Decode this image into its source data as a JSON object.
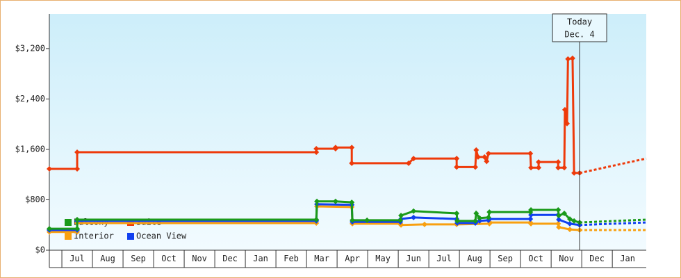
{
  "chart_data": {
    "type": "line",
    "xlim": [
      0.59,
      20.11
    ],
    "xticks": [
      {
        "value": 1.5,
        "label": "Jul"
      },
      {
        "value": 2.5,
        "label": "Aug"
      },
      {
        "value": 3.5,
        "label": "Sep"
      },
      {
        "value": 4.5,
        "label": "Oct"
      },
      {
        "value": 5.5,
        "label": "Nov"
      },
      {
        "value": 6.5,
        "label": "Dec"
      },
      {
        "value": 7.5,
        "label": "Jan"
      },
      {
        "value": 8.5,
        "label": "Feb"
      },
      {
        "value": 9.5,
        "label": "Mar"
      },
      {
        "value": 10.5,
        "label": "Apr"
      },
      {
        "value": 11.5,
        "label": "May"
      },
      {
        "value": 12.5,
        "label": "Jun"
      },
      {
        "value": 13.5,
        "label": "Jul"
      },
      {
        "value": 14.5,
        "label": "Aug"
      },
      {
        "value": 15.5,
        "label": "Sep"
      },
      {
        "value": 16.5,
        "label": "Oct"
      },
      {
        "value": 17.5,
        "label": "Nov"
      },
      {
        "value": 18.5,
        "label": "Dec"
      },
      {
        "value": 19.5,
        "label": "Jan"
      }
    ],
    "ylim": [
      0,
      3750
    ],
    "yticks": [
      {
        "value": 0,
        "label": "$0"
      },
      {
        "value": 800,
        "label": "$800"
      },
      {
        "value": 1600,
        "label": "$1,600"
      },
      {
        "value": 2400,
        "label": "$2,400"
      },
      {
        "value": 3200,
        "label": "$3,200"
      }
    ],
    "grid": false,
    "annotation": {
      "x": 17.93,
      "lines": [
        "Today",
        "Dec. 4"
      ]
    },
    "series": [
      {
        "name": "Balcony",
        "color": "#1a9a1a",
        "x": [
          0.59,
          1.5,
          1.5,
          9.32,
          9.34,
          9.95,
          10.48,
          10.5,
          10.98,
          12.07,
          12.09,
          12.5,
          13.91,
          13.93,
          14.52,
          14.55,
          14.66,
          14.95,
          14.98,
          16.32,
          16.34,
          17.23,
          17.25,
          17.43,
          17.61,
          17.75,
          17.93
        ],
        "values": [
          340,
          340,
          485,
          485,
          775,
          775,
          760,
          475,
          475,
          475,
          550,
          620,
          585,
          465,
          465,
          585,
          510,
          520,
          605,
          605,
          640,
          640,
          550,
          585,
          495,
          465,
          440
        ],
        "forecast": {
          "x": [
            17.93,
            20.11
          ],
          "values": [
            440,
            485
          ]
        }
      },
      {
        "name": "Suite",
        "color": "#ee3a0a",
        "x": [
          0.59,
          1.5,
          1.5,
          9.32,
          9.32,
          9.95,
          9.95,
          10.48,
          10.48,
          12.34,
          12.5,
          13.91,
          13.91,
          14.52,
          14.55,
          14.61,
          14.82,
          14.89,
          14.95,
          16.32,
          16.34,
          16.59,
          16.59,
          17.23,
          17.23,
          17.43,
          17.45,
          17.52,
          17.55,
          17.7,
          17.75,
          17.93
        ],
        "values": [
          1290,
          1290,
          1555,
          1555,
          1610,
          1610,
          1630,
          1630,
          1380,
          1380,
          1455,
          1455,
          1320,
          1320,
          1590,
          1480,
          1480,
          1410,
          1535,
          1535,
          1310,
          1310,
          1400,
          1400,
          1310,
          1310,
          2230,
          2010,
          3035,
          3045,
          1225,
          1225
        ],
        "forecast": {
          "x": [
            17.93,
            20.11
          ],
          "values": [
            1225,
            1455
          ]
        }
      },
      {
        "name": "Interior",
        "color": "#f8a010",
        "x": [
          0.59,
          1.5,
          1.5,
          9.32,
          9.34,
          10.48,
          10.5,
          12.07,
          12.09,
          12.86,
          13.91,
          14.98,
          15.0,
          16.32,
          16.34,
          17.23,
          17.25,
          17.61,
          17.93
        ],
        "values": [
          290,
          290,
          430,
          430,
          695,
          685,
          420,
          420,
          400,
          410,
          410,
          420,
          440,
          440,
          420,
          420,
          365,
          330,
          320
        ],
        "forecast": {
          "x": [
            17.93,
            20.11
          ],
          "values": [
            320,
            320
          ]
        }
      },
      {
        "name": "Ocean View",
        "color": "#1040f0",
        "x": [
          0.59,
          1.5,
          1.5,
          9.32,
          9.34,
          10.48,
          10.5,
          12.07,
          12.09,
          12.5,
          13.91,
          13.93,
          14.52,
          14.66,
          14.95,
          14.98,
          16.32,
          16.34,
          17.23,
          17.25,
          17.61,
          17.93
        ],
        "values": [
          320,
          320,
          465,
          465,
          730,
          720,
          450,
          450,
          495,
          520,
          495,
          430,
          430,
          465,
          475,
          495,
          495,
          560,
          560,
          485,
          420,
          400
        ],
        "forecast": {
          "x": [
            17.93,
            20.11
          ],
          "values": [
            400,
            440
          ]
        }
      }
    ]
  }
}
